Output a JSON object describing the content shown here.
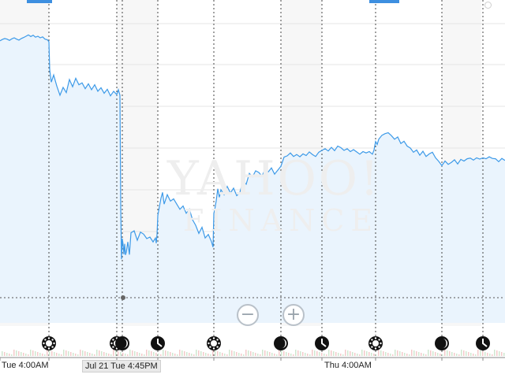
{
  "chart_data": {
    "type": "area",
    "title": "",
    "xlabel": "",
    "ylabel": "",
    "grid": true,
    "watermark": [
      "YAHOO!",
      "FINANCE"
    ],
    "x_tick_labels": [
      "Tue 4:00AM",
      "Thu 4:00AM"
    ],
    "crosshair_label": "Jul 21 Tue 4:45PM",
    "line_color": "#3d9ae8",
    "fill_color": "#eaf4fd",
    "session_markers": [
      "sun",
      "sun",
      "moon",
      "clock",
      "sun",
      "moon",
      "clock",
      "sun",
      "moon",
      "clock"
    ],
    "ylim": [
      0,
      100
    ],
    "series": [
      {
        "x": [
          0,
          3,
          6,
          9,
          12,
          15,
          18,
          21,
          24,
          27,
          30,
          33,
          36,
          39,
          42,
          45,
          48,
          51,
          54,
          57,
          60,
          62,
          63,
          65,
          68,
          72,
          76,
          80,
          84,
          88,
          92,
          96,
          100,
          104,
          108,
          112,
          116,
          120,
          124,
          128,
          132,
          136,
          140,
          144,
          148,
          150,
          152,
          153,
          154,
          155,
          156,
          157,
          158,
          159,
          160,
          162,
          164,
          166,
          170,
          174,
          178,
          182,
          186,
          190,
          194,
          197,
          198,
          199,
          200,
          202,
          204,
          206,
          208,
          212,
          216,
          220,
          224,
          228,
          232,
          236,
          240,
          244,
          248,
          252,
          256,
          260,
          264,
          268,
          270,
          271,
          272,
          274,
          276,
          278,
          280,
          284,
          288,
          292,
          296,
          300,
          304,
          308,
          312,
          316,
          320,
          324,
          328,
          332,
          336,
          340,
          344,
          348,
          352,
          354,
          356,
          360,
          364,
          368,
          372,
          376,
          380,
          384,
          388,
          392,
          396,
          400,
          404,
          408,
          412,
          416,
          420,
          424,
          428,
          432,
          436,
          440,
          444,
          448,
          452,
          456,
          460,
          464,
          468,
          472,
          474,
          476,
          478,
          480,
          484,
          488,
          492,
          496,
          500,
          504,
          508,
          512,
          516,
          520,
          524,
          528,
          532,
          536,
          540,
          544,
          548,
          552,
          556,
          560,
          564,
          568,
          572,
          576,
          580,
          584,
          588,
          592,
          596,
          600,
          604,
          608,
          612,
          616,
          620,
          624,
          628,
          632,
          636,
          640
        ],
        "values": [
          87.5,
          87.9,
          88.2,
          88.0,
          87.6,
          88.1,
          88.4,
          88.0,
          87.7,
          88.2,
          88.5,
          88.9,
          89.3,
          88.8,
          89.2,
          88.6,
          88.9,
          88.4,
          88.7,
          88.0,
          87.8,
          87.2,
          78.6,
          74.8,
          77.0,
          73.6,
          70.8,
          73.2,
          71.6,
          75.6,
          73.4,
          76.0,
          74.0,
          74.6,
          72.8,
          74.3,
          72.5,
          74.0,
          72.0,
          73.1,
          71.4,
          72.6,
          70.6,
          72.0,
          71.0,
          72.5,
          70.8,
          36.0,
          20.5,
          26.8,
          25.0,
          22.0,
          25.2,
          21.8,
          22.6,
          25.8,
          21.9,
          28.6,
          29.2,
          26.3,
          28.8,
          28.2,
          26.8,
          27.3,
          25.8,
          27.0,
          25.4,
          28.0,
          33.9,
          36.6,
          39.2,
          41.0,
          37.4,
          40.3,
          38.3,
          39.0,
          37.4,
          35.8,
          36.8,
          34.6,
          35.9,
          32.6,
          30.9,
          28.4,
          30.3,
          27.0,
          28.1,
          25.9,
          24.2,
          34.6,
          35.5,
          38.4,
          42.1,
          39.5,
          41.8,
          40.3,
          42.8,
          40.8,
          42.3,
          40.0,
          41.0,
          44.6,
          43.5,
          46.8,
          45.8,
          47.6,
          47.1,
          46.0,
          48.2,
          47.3,
          48.5,
          46.6,
          47.8,
          48.4,
          49.0,
          51.8,
          52.2,
          53.1,
          52.0,
          52.6,
          51.9,
          52.8,
          52.3,
          53.4,
          52.6,
          52.0,
          53.3,
          53.9,
          54.4,
          53.7,
          54.8,
          53.8,
          55.2,
          54.7,
          53.9,
          54.4,
          53.5,
          54.1,
          53.4,
          52.7,
          53.5,
          53.1,
          53.5,
          52.7,
          54.0,
          56.6,
          55.7,
          57.3,
          58.5,
          59.0,
          59.3,
          58.4,
          57.3,
          58.0,
          56.0,
          56.7,
          55.2,
          54.6,
          53.3,
          54.0,
          52.4,
          53.6,
          52.0,
          52.8,
          53.3,
          51.6,
          50.5,
          49.2,
          50.6,
          49.6,
          50.2,
          51.0,
          49.7,
          51.1,
          50.6,
          51.3,
          51.5,
          50.9,
          51.6,
          51.2,
          51.6,
          51.3,
          51.9,
          51.4,
          51.3,
          50.4,
          51.4,
          50.8
        ]
      }
    ]
  },
  "controls": {
    "zoom_out": "−",
    "zoom_in": "+"
  }
}
